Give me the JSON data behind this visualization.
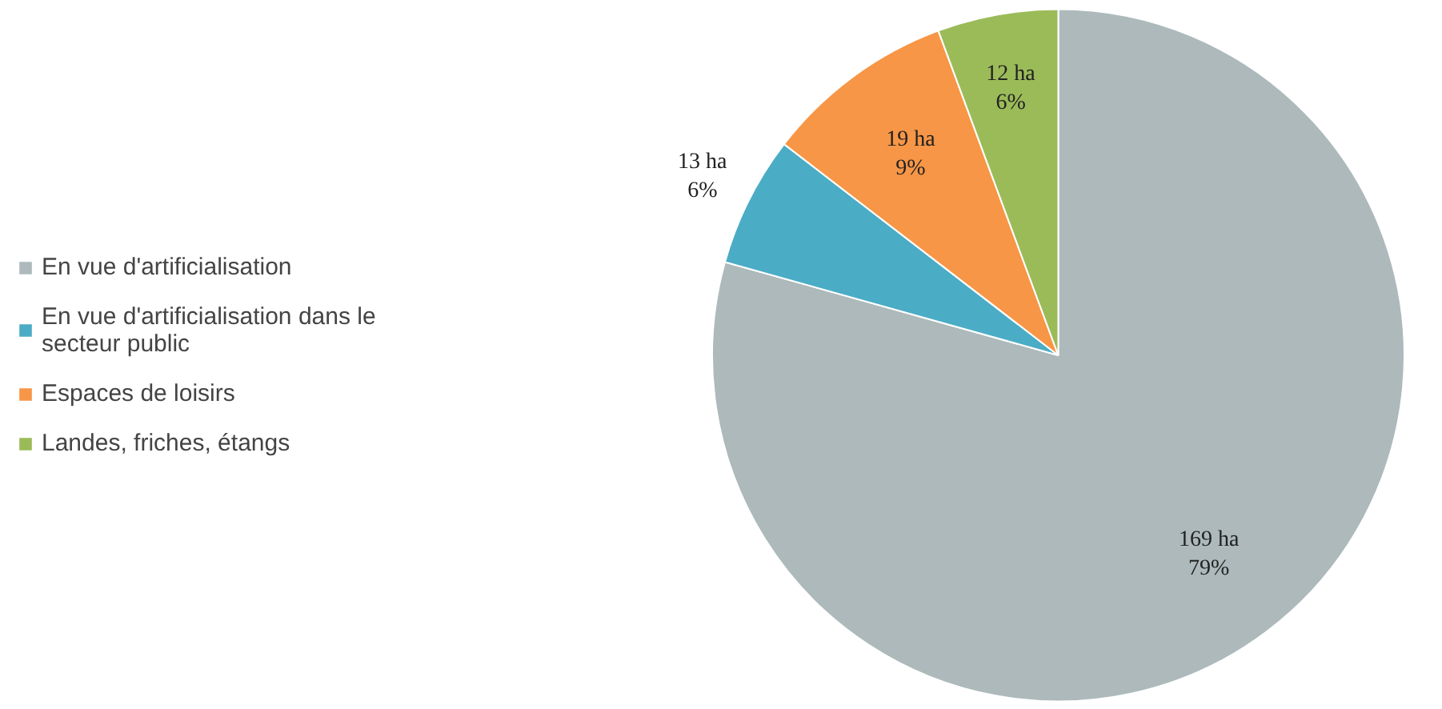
{
  "chart_data": {
    "type": "pie",
    "categories": [
      "En vue d'artificialisation",
      "En vue d'artificialisation dans le\nsecteur public",
      "Espaces de loisirs",
      "Landes, friches, étangs"
    ],
    "values": [
      169,
      13,
      19,
      12
    ],
    "colors": [
      "#adb9bb",
      "#4bacc6",
      "#f79646",
      "#9bbb59"
    ],
    "value_labels": [
      "169 ha\n79%",
      "13 ha\n6%",
      "19 ha\n9%",
      "12 ha\n6%"
    ],
    "legend": "left"
  }
}
